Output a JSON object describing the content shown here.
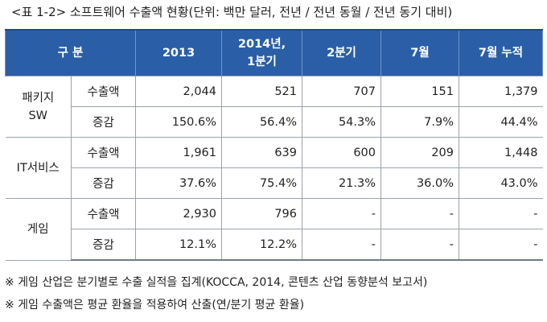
{
  "title": "<표 1-2> 소프트웨어 수출액 현황(단위: 백만 달러, 전년 / 전년 동월 / 전년 동기 대비)",
  "table": {
    "header": {
      "category": "구 분",
      "col_2013": "2013",
      "col_2014_line1": "2014년,",
      "col_2014_line2": "1분기",
      "col_q2": "2분기",
      "col_jul": "7월",
      "col_jul_cum": "7월 누적"
    },
    "groups": [
      {
        "name_line1": "패키지",
        "name_line2": "SW",
        "rows": [
          {
            "metric": "수출액",
            "values": [
              "2,044",
              "521",
              "707",
              "151",
              "1,379"
            ]
          },
          {
            "metric": "증감",
            "values": [
              "150.6%",
              "56.4%",
              "54.3%",
              "7.9%",
              "44.4%"
            ]
          }
        ]
      },
      {
        "name_line1": "IT서비스",
        "name_line2": "",
        "rows": [
          {
            "metric": "수출액",
            "values": [
              "1,961",
              "639",
              "600",
              "209",
              "1,448"
            ]
          },
          {
            "metric": "증감",
            "values": [
              "37.6%",
              "75.4%",
              "21.3%",
              "36.0%",
              "43.0%"
            ]
          }
        ]
      },
      {
        "name_line1": "게임",
        "name_line2": "",
        "rows": [
          {
            "metric": "수출액",
            "values": [
              "2,930",
              "796",
              "-",
              "-",
              "-"
            ]
          },
          {
            "metric": "증감",
            "values": [
              "12.1%",
              "12.2%",
              "-",
              "-",
              "-"
            ]
          }
        ]
      }
    ]
  },
  "notes": [
    "※ 게임 산업은 분기별로 수출 실적을 집계(KOCCA, 2014, 콘텐츠 산업 동향분석 보고서)",
    "※ 게임 수출액은 평균 환율을 적용하여 산출(연/분기 평균 환율)"
  ],
  "colors": {
    "header_background": "#2a5fa8",
    "header_text": "#ffffff",
    "grid_line": "#9aa3ad"
  }
}
